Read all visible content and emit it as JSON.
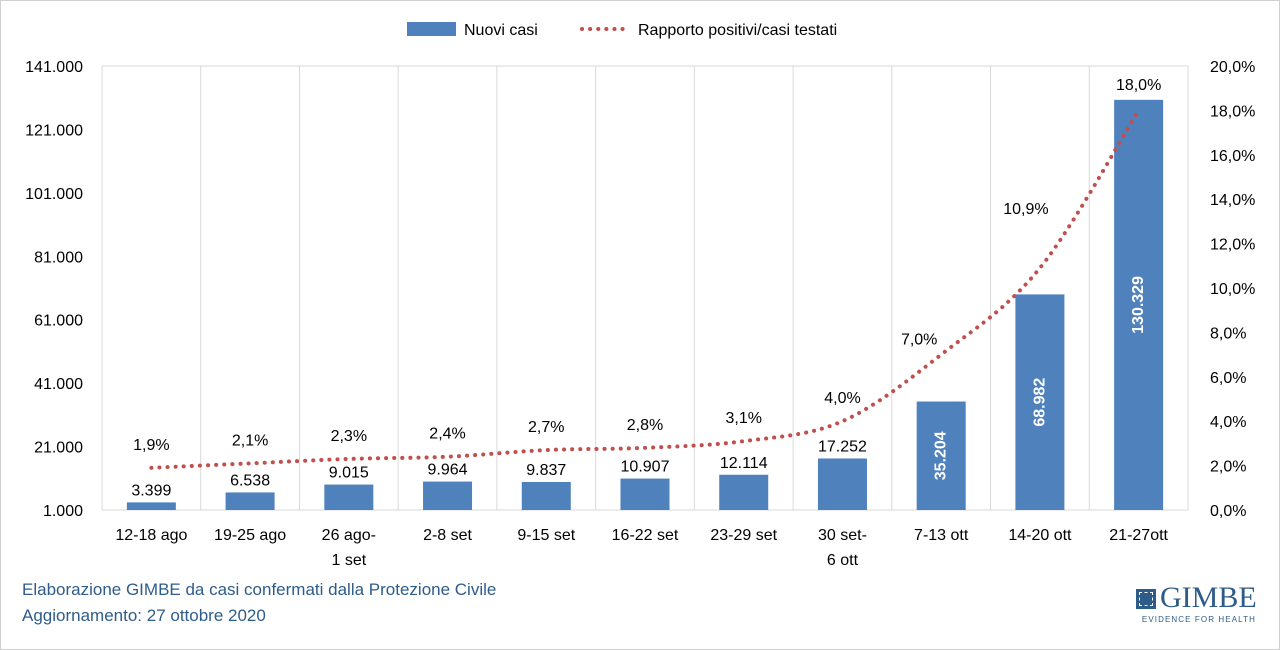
{
  "chart_data": {
    "type": "bar",
    "categories": [
      "12-18 ago",
      "19-25 ago",
      "26 ago-\n1 set",
      "2-8 set",
      "9-15 set",
      "16-22 set",
      "23-29 set",
      "30 set-\n6 ott",
      "7-13 ott",
      "14-20 ott",
      "21-27ott"
    ],
    "series": [
      {
        "name": "Nuovi casi",
        "type": "bar",
        "axis": "left",
        "color": "#4f81bd",
        "values": [
          3399,
          6538,
          9015,
          9964,
          9837,
          10907,
          12114,
          17252,
          35204,
          68982,
          130329
        ],
        "labels": [
          "3.399",
          "6.538",
          "9.015",
          "9.964",
          "9.837",
          "10.907",
          "12.114",
          "17.252",
          "35.204",
          "68.982",
          "130.329"
        ]
      },
      {
        "name": "Rapporto positivi/casi testati",
        "type": "line",
        "style": "dotted",
        "axis": "right",
        "color": "#c0504d",
        "values": [
          1.9,
          2.1,
          2.3,
          2.4,
          2.7,
          2.8,
          3.1,
          4.0,
          7.0,
          10.9,
          18.0
        ],
        "labels": [
          "1,9%",
          "2,1%",
          "2,3%",
          "2,4%",
          "2,7%",
          "2,8%",
          "3,1%",
          "4,0%",
          "7,0%",
          "10,9%",
          "18,0%"
        ]
      }
    ],
    "y_left": {
      "range": [
        1000,
        141000
      ],
      "ticks": [
        1000,
        21000,
        41000,
        61000,
        81000,
        101000,
        121000,
        141000
      ],
      "tick_labels": [
        "1.000",
        "21.000",
        "41.000",
        "61.000",
        "81.000",
        "101.000",
        "121.000",
        "141.000"
      ]
    },
    "y_right": {
      "range": [
        0,
        20
      ],
      "ticks": [
        0,
        2,
        4,
        6,
        8,
        10,
        12,
        14,
        16,
        18,
        20
      ],
      "tick_labels": [
        "0,0%",
        "2,0%",
        "4,0%",
        "6,0%",
        "8,0%",
        "10,0%",
        "12,0%",
        "14,0%",
        "16,0%",
        "18,0%",
        "20,0%"
      ]
    },
    "grid": "vertical",
    "legend": "top-center"
  },
  "footer": {
    "line1": "Elaborazione GIMBE da casi confermati dalla Protezione Civile",
    "line2": "Aggiornamento: 27 ottobre 2020"
  },
  "logo": {
    "name": "GIMBE",
    "tagline": "EVIDENCE FOR HEALTH"
  }
}
